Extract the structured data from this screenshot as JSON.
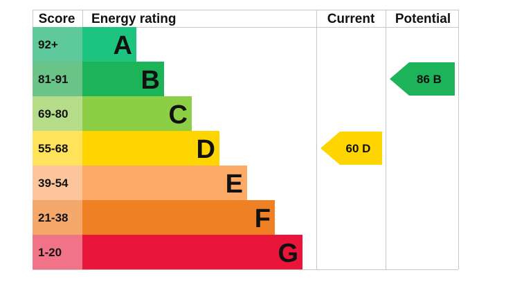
{
  "chart_data": {
    "type": "bar",
    "title": "",
    "columns": {
      "score": "Score",
      "rating": "Energy rating",
      "current": "Current",
      "potential": "Potential"
    },
    "bands": [
      {
        "score": "92+",
        "letter": "A",
        "color": "#1cc47f",
        "score_bg": "#5ec99b"
      },
      {
        "score": "81-91",
        "letter": "B",
        "color": "#1db359",
        "score_bg": "#6ac488"
      },
      {
        "score": "69-80",
        "letter": "C",
        "color": "#8cce46",
        "score_bg": "#b5dd89"
      },
      {
        "score": "55-68",
        "letter": "D",
        "color": "#ffd500",
        "score_bg": "#ffe35b"
      },
      {
        "score": "39-54",
        "letter": "E",
        "color": "#fcaa65",
        "score_bg": "#fcc59b"
      },
      {
        "score": "21-38",
        "letter": "F",
        "color": "#ef8023",
        "score_bg": "#f4a86c"
      },
      {
        "score": "1-20",
        "letter": "G",
        "color": "#e9153b",
        "score_bg": "#f07387"
      }
    ],
    "current": {
      "value": 60,
      "letter": "D",
      "text": "60 D",
      "color": "#ffd500"
    },
    "potential": {
      "value": 86,
      "letter": "B",
      "text": "86 B",
      "color": "#1db359"
    }
  }
}
